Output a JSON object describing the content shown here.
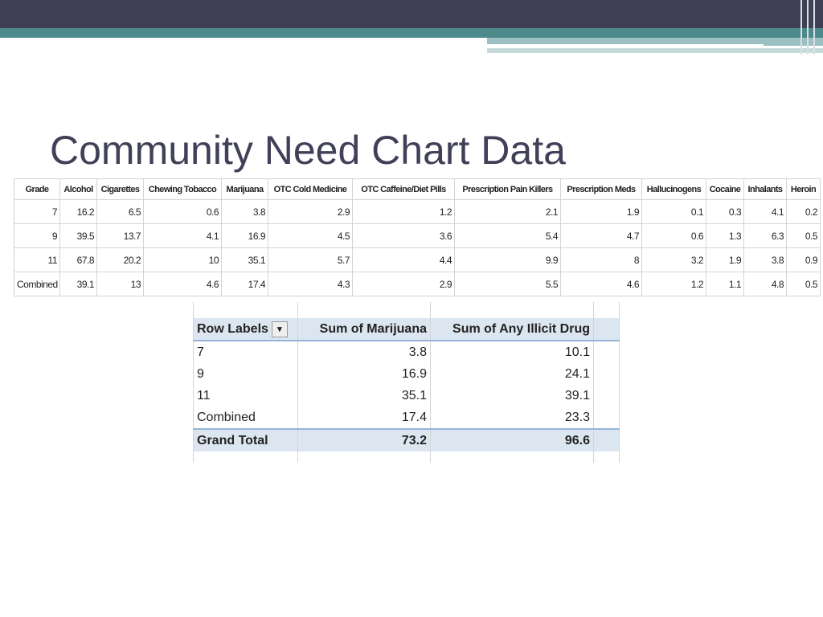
{
  "title": "Community Need Chart Data",
  "table": {
    "headers": [
      "Grade",
      "Alcohol",
      "Cigarettes",
      "Chewing Tobacco",
      "Marijuana",
      "OTC Cold Medicine",
      "OTC Caffeine/Diet Pills",
      "Prescription Pain Killers",
      "Prescription Meds",
      "Hallucinogens",
      "Cocaine",
      "Inhalants",
      "Heroin"
    ],
    "rows": [
      [
        7,
        16.2,
        6.5,
        0.6,
        3.8,
        2.9,
        1.2,
        2.1,
        1.9,
        0.1,
        0.3,
        4.1,
        0.2
      ],
      [
        9,
        39.5,
        13.7,
        4.1,
        16.9,
        4.5,
        3.6,
        5.4,
        4.7,
        0.6,
        1.3,
        6.3,
        0.5
      ],
      [
        11,
        67.8,
        20.2,
        10,
        35.1,
        5.7,
        4.4,
        9.9,
        8,
        3.2,
        1.9,
        3.8,
        0.9
      ],
      [
        "Combined",
        39.1,
        13,
        4.6,
        17.4,
        4.3,
        2.9,
        5.5,
        4.6,
        1.2,
        1.1,
        4.8,
        0.5
      ]
    ]
  },
  "pivot": {
    "headers": [
      "Row Labels",
      "Sum of Marijuana",
      "Sum of Any Illicit Drug"
    ],
    "rows": [
      [
        "7",
        3.8,
        10.1
      ],
      [
        "9",
        16.9,
        24.1
      ],
      [
        "11",
        35.1,
        39.1
      ],
      [
        "Combined",
        17.4,
        23.3
      ]
    ],
    "total": [
      "Grand Total",
      73.2,
      96.6
    ]
  }
}
